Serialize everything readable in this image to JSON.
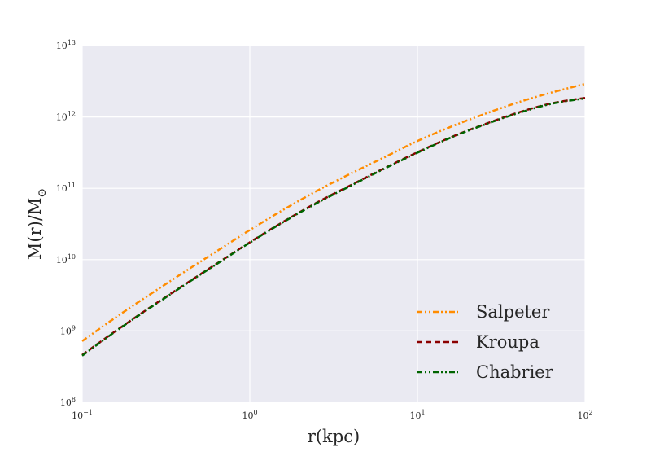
{
  "chart_data": {
    "type": "line",
    "xlabel": "r(kpc)",
    "ylabel": "M(r)/M",
    "ylabel_subscript": "⊙",
    "x_scale": "log",
    "y_scale": "log",
    "xlim": [
      0.1,
      100
    ],
    "ylim": [
      100000000,
      10000000000000
    ],
    "grid": true,
    "legend_position": "lower-right",
    "x_ticks": [
      {
        "value": 0.1,
        "base": "10",
        "exp": "−1"
      },
      {
        "value": 1,
        "base": "10",
        "exp": "0"
      },
      {
        "value": 10,
        "base": "10",
        "exp": "1"
      },
      {
        "value": 100,
        "base": "10",
        "exp": "2"
      }
    ],
    "y_ticks": [
      {
        "value": 100000000,
        "base": "10",
        "exp": "8"
      },
      {
        "value": 1000000000,
        "base": "10",
        "exp": "9"
      },
      {
        "value": 10000000000,
        "base": "10",
        "exp": "10"
      },
      {
        "value": 100000000000,
        "base": "10",
        "exp": "11"
      },
      {
        "value": 1000000000000,
        "base": "10",
        "exp": "12"
      },
      {
        "value": 10000000000000,
        "base": "10",
        "exp": "13"
      }
    ],
    "x": [
      0.1,
      0.1585,
      0.2512,
      0.3981,
      0.631,
      1,
      1.585,
      2.512,
      3.981,
      6.31,
      10,
      15.85,
      25.12,
      39.81,
      63.1,
      100
    ],
    "series": [
      {
        "name": "Salpeter",
        "color": "#ff8c00",
        "dash": "dashdotdot",
        "values": [
          720000000,
          1550000000,
          3200000000,
          6500000000,
          13000000000,
          26000000000,
          50000000000,
          92000000000,
          160000000000,
          270000000000,
          460000000000,
          730000000000,
          1100000000000,
          1600000000000,
          2200000000000,
          2900000000000
        ]
      },
      {
        "name": "Kroupa",
        "color": "#8b0000",
        "dash": "dashed",
        "values": [
          460000000,
          1000000000,
          2100000000,
          4300000000,
          8700000000,
          17500000000,
          34000000000,
          63000000000,
          110000000000,
          190000000000,
          320000000000,
          520000000000,
          790000000000,
          1150000000000,
          1550000000000,
          1850000000000
        ]
      },
      {
        "name": "Chabrier",
        "color": "#006400",
        "dash": "dashdotdot",
        "values": [
          450000000,
          990000000,
          2070000000,
          4250000000,
          8600000000,
          17300000000,
          33600000000,
          62000000000,
          108000000000,
          187000000000,
          315000000000,
          515000000000,
          780000000000,
          1130000000000,
          1530000000000,
          1820000000000
        ]
      }
    ]
  }
}
